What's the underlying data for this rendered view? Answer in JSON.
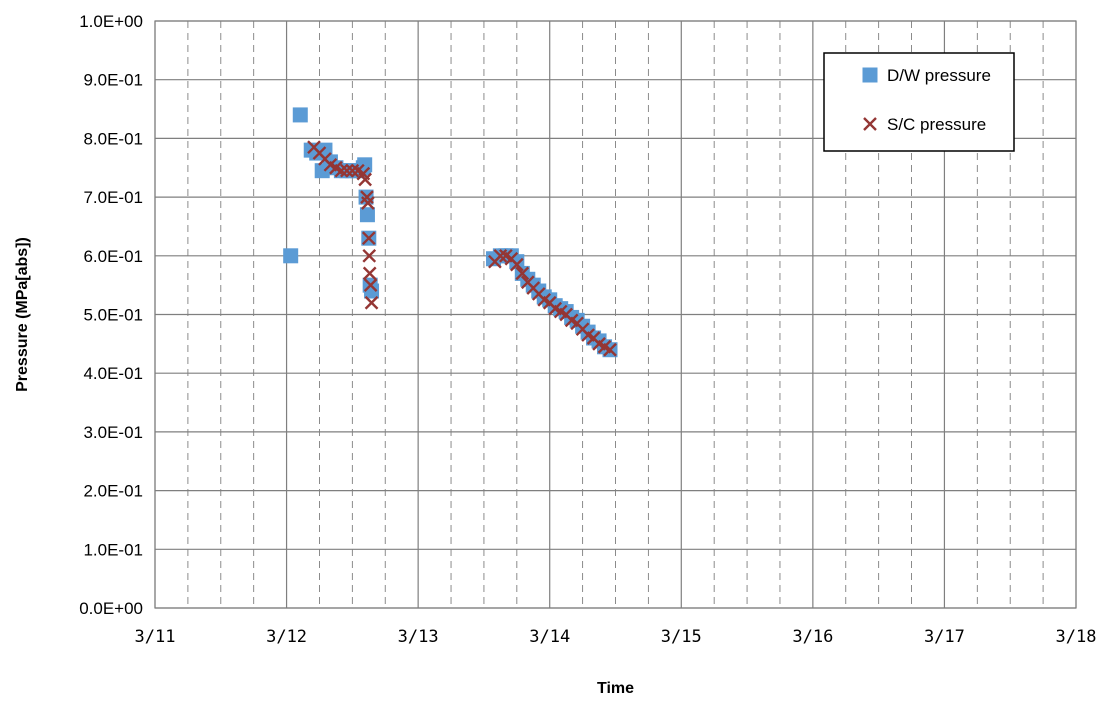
{
  "chart_data": {
    "type": "scatter",
    "title": "",
    "xlabel": "Time",
    "ylabel": "Pressure (MPa[abs])",
    "x_ticks": [
      "3/11",
      "3/12",
      "3/13",
      "3/14",
      "3/15",
      "3/16",
      "3/17",
      "3/18"
    ],
    "y_ticks": [
      "0.0E+00",
      "1.0E-01",
      "2.0E-01",
      "3.0E-01",
      "4.0E-01",
      "5.0E-01",
      "6.0E-01",
      "7.0E-01",
      "8.0E-01",
      "9.0E-01",
      "1.0E+00"
    ],
    "xlim": [
      "3/11",
      "3/18"
    ],
    "ylim": [
      0,
      1.0
    ],
    "grid": "major solid, minor dashed (every 0.25 day)",
    "legend_position": "top-right",
    "series": [
      {
        "name": "D/W pressure",
        "marker": "square",
        "color": "#5b9bd5",
        "points": [
          [
            "3/12 00:45",
            0.6
          ],
          [
            "3/12 02:30",
            0.84
          ],
          [
            "3/12 04:30",
            0.78
          ],
          [
            "3/12 05:30",
            0.775
          ],
          [
            "3/12 06:30",
            0.745
          ],
          [
            "3/12 07:00",
            0.78
          ],
          [
            "3/12 08:00",
            0.76
          ],
          [
            "3/12 09:00",
            0.75
          ],
          [
            "3/12 10:00",
            0.745
          ],
          [
            "3/12 11:00",
            0.745
          ],
          [
            "3/12 12:00",
            0.745
          ],
          [
            "3/12 13:00",
            0.745
          ],
          [
            "3/12 14:00",
            0.75
          ],
          [
            "3/12 14:15",
            0.755
          ],
          [
            "3/12 14:30",
            0.7
          ],
          [
            "3/12 14:45",
            0.67
          ],
          [
            "3/12 15:00",
            0.63
          ],
          [
            "3/12 15:15",
            0.55
          ],
          [
            "3/12 15:30",
            0.54
          ],
          [
            "3/13 13:45",
            0.595
          ],
          [
            "3/13 15:00",
            0.6
          ],
          [
            "3/13 16:00",
            0.6
          ],
          [
            "3/13 17:00",
            0.6
          ],
          [
            "3/13 18:00",
            0.59
          ],
          [
            "3/13 19:00",
            0.57
          ],
          [
            "3/13 20:00",
            0.56
          ],
          [
            "3/13 21:00",
            0.55
          ],
          [
            "3/13 22:00",
            0.54
          ],
          [
            "3/13 23:00",
            0.53
          ],
          [
            "3/14 00:00",
            0.525
          ],
          [
            "3/14 01:00",
            0.515
          ],
          [
            "3/14 02:00",
            0.51
          ],
          [
            "3/14 03:00",
            0.505
          ],
          [
            "3/14 04:00",
            0.495
          ],
          [
            "3/14 05:00",
            0.49
          ],
          [
            "3/14 06:00",
            0.48
          ],
          [
            "3/14 07:00",
            0.47
          ],
          [
            "3/14 08:00",
            0.46
          ],
          [
            "3/14 09:00",
            0.455
          ],
          [
            "3/14 10:00",
            0.445
          ],
          [
            "3/14 11:00",
            0.44
          ]
        ]
      },
      {
        "name": "S/C pressure",
        "marker": "x",
        "color": "#943634",
        "points": [
          [
            "3/12 05:00",
            0.785
          ],
          [
            "3/12 06:00",
            0.775
          ],
          [
            "3/12 07:00",
            0.765
          ],
          [
            "3/12 08:00",
            0.755
          ],
          [
            "3/12 09:00",
            0.75
          ],
          [
            "3/12 10:00",
            0.745
          ],
          [
            "3/12 11:00",
            0.745
          ],
          [
            "3/12 12:00",
            0.745
          ],
          [
            "3/12 13:00",
            0.745
          ],
          [
            "3/12 14:00",
            0.74
          ],
          [
            "3/12 14:20",
            0.73
          ],
          [
            "3/12 14:40",
            0.7
          ],
          [
            "3/12 14:50",
            0.69
          ],
          [
            "3/12 15:00",
            0.63
          ],
          [
            "3/12 15:05",
            0.6
          ],
          [
            "3/12 15:10",
            0.57
          ],
          [
            "3/12 15:20",
            0.55
          ],
          [
            "3/12 15:30",
            0.52
          ],
          [
            "3/13 14:00",
            0.59
          ],
          [
            "3/13 15:00",
            0.6
          ],
          [
            "3/13 16:00",
            0.6
          ],
          [
            "3/13 17:00",
            0.595
          ],
          [
            "3/13 18:00",
            0.585
          ],
          [
            "3/13 19:00",
            0.57
          ],
          [
            "3/13 20:00",
            0.555
          ],
          [
            "3/13 21:00",
            0.545
          ],
          [
            "3/13 22:00",
            0.535
          ],
          [
            "3/13 23:00",
            0.525
          ],
          [
            "3/14 00:00",
            0.52
          ],
          [
            "3/14 01:00",
            0.51
          ],
          [
            "3/14 02:00",
            0.505
          ],
          [
            "3/14 03:00",
            0.5
          ],
          [
            "3/14 04:00",
            0.49
          ],
          [
            "3/14 05:00",
            0.485
          ],
          [
            "3/14 06:00",
            0.475
          ],
          [
            "3/14 07:00",
            0.465
          ],
          [
            "3/14 08:00",
            0.46
          ],
          [
            "3/14 09:00",
            0.45
          ],
          [
            "3/14 10:00",
            0.445
          ],
          [
            "3/14 11:00",
            0.44
          ]
        ]
      }
    ]
  }
}
